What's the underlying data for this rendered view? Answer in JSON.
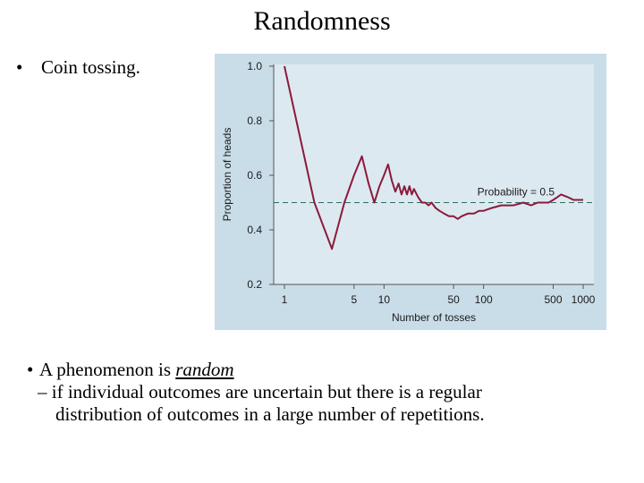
{
  "slide": {
    "title": "Randomness",
    "bullet_mark": "•",
    "bullet_coin": "Coin tossing.",
    "definition_lead": "A phenomenon is",
    "definition_term": "random",
    "definition_dash": "–",
    "definition_rest_line1": "if individual outcomes are uncertain but there is a regular",
    "definition_rest_line2": "distribution of outcomes in a large number of repetitions."
  },
  "colors": {
    "plot_background": "#dde9f0",
    "figure_background": "#c9dde8",
    "line_color": "#8b1a3c",
    "reference_color": "#2e6e5a"
  },
  "chart_data": {
    "type": "line",
    "xlabel": "Number of tosses",
    "ylabel": "Proportion of heads",
    "x_scale": "log",
    "xlim": [
      1,
      1000
    ],
    "ylim": [
      0.2,
      1.0
    ],
    "x_ticks": [
      1,
      5,
      10,
      50,
      100,
      500,
      1000
    ],
    "x_tick_labels": [
      "1",
      "5",
      "10",
      "50",
      "100",
      "500",
      "1000"
    ],
    "y_ticks": [
      0.2,
      0.4,
      0.6,
      0.8,
      1.0
    ],
    "y_tick_labels": [
      "0.2",
      "0.4",
      "0.6",
      "0.8",
      "1.0"
    ],
    "reference_line": {
      "y": 0.5,
      "label": "Probability = 0.5"
    },
    "series": [
      {
        "x": [
          1,
          2,
          3,
          4,
          5,
          6,
          7,
          8,
          9,
          10,
          11,
          12,
          13,
          14,
          15,
          16,
          17,
          18,
          19,
          20,
          22,
          24,
          26,
          28,
          30,
          33,
          36,
          40,
          45,
          50,
          55,
          60,
          70,
          80,
          90,
          100,
          120,
          150,
          200,
          250,
          300,
          350,
          400,
          450,
          500,
          550,
          600,
          700,
          800,
          900,
          1000
        ],
        "y": [
          1.0,
          0.5,
          0.33,
          0.5,
          0.6,
          0.67,
          0.57,
          0.5,
          0.56,
          0.6,
          0.64,
          0.58,
          0.54,
          0.57,
          0.53,
          0.56,
          0.53,
          0.56,
          0.53,
          0.55,
          0.52,
          0.5,
          0.5,
          0.49,
          0.5,
          0.48,
          0.47,
          0.46,
          0.45,
          0.45,
          0.44,
          0.45,
          0.46,
          0.46,
          0.47,
          0.47,
          0.48,
          0.49,
          0.49,
          0.5,
          0.49,
          0.5,
          0.5,
          0.5,
          0.51,
          0.52,
          0.53,
          0.52,
          0.51,
          0.51,
          0.51
        ]
      }
    ]
  }
}
